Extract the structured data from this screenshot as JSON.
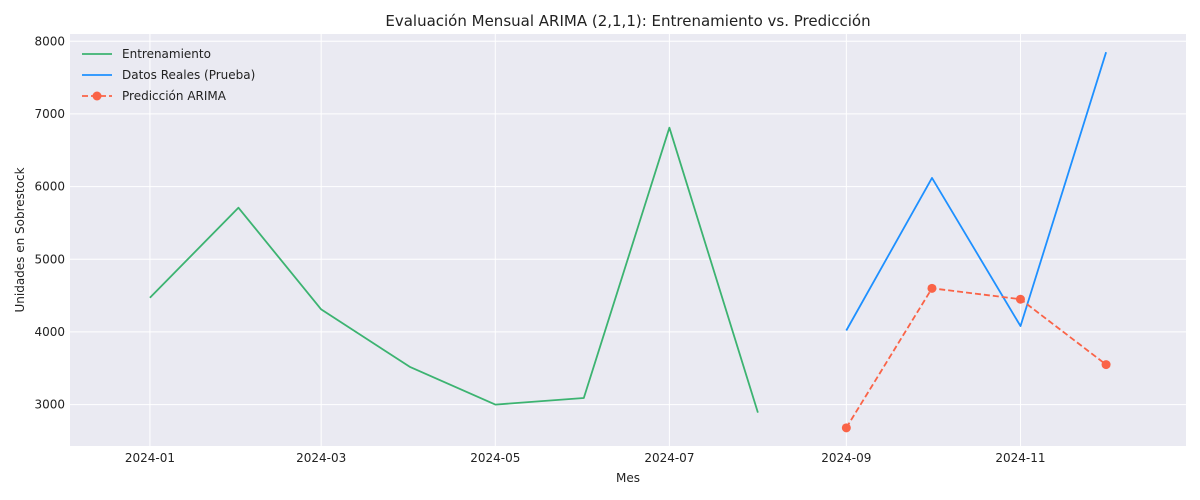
{
  "chart_data": {
    "type": "line",
    "title": "Evaluación Mensual ARIMA (2,1,1): Entrenamiento vs. Predicción",
    "xlabel": "Mes",
    "ylabel": "Unidades en Sobrestock",
    "ylim": [
      2430,
      8100
    ],
    "xlim": [
      "2023-12-04",
      "2024-12-29"
    ],
    "x_ticks": [
      "2024-01",
      "2024-03",
      "2024-05",
      "2024-07",
      "2024-09",
      "2024-11"
    ],
    "y_ticks": [
      3000,
      4000,
      5000,
      6000,
      7000,
      8000
    ],
    "grid": true,
    "legend_position": "top-left",
    "series": [
      {
        "name": "Entrenamiento",
        "color": "#3cb371",
        "style": "solid",
        "marker": "none",
        "points": [
          {
            "x": "2024-01-01",
            "y": 4470
          },
          {
            "x": "2024-02-01",
            "y": 5710
          },
          {
            "x": "2024-03-01",
            "y": 4310
          },
          {
            "x": "2024-04-01",
            "y": 3520
          },
          {
            "x": "2024-05-01",
            "y": 3000
          },
          {
            "x": "2024-06-01",
            "y": 3090
          },
          {
            "x": "2024-07-01",
            "y": 6810
          },
          {
            "x": "2024-08-01",
            "y": 2890
          }
        ]
      },
      {
        "name": "Datos Reales (Prueba)",
        "color": "#1e90ff",
        "style": "solid",
        "marker": "none",
        "points": [
          {
            "x": "2024-09-01",
            "y": 4020
          },
          {
            "x": "2024-10-01",
            "y": 6120
          },
          {
            "x": "2024-11-01",
            "y": 4080
          },
          {
            "x": "2024-12-01",
            "y": 7850
          }
        ]
      },
      {
        "name": "Predicción ARIMA",
        "color": "#fa6347",
        "style": "dashed",
        "marker": "circle",
        "points": [
          {
            "x": "2024-09-01",
            "y": 2680
          },
          {
            "x": "2024-10-01",
            "y": 4600
          },
          {
            "x": "2024-11-01",
            "y": 4450
          },
          {
            "x": "2024-12-01",
            "y": 3550
          }
        ]
      }
    ]
  }
}
